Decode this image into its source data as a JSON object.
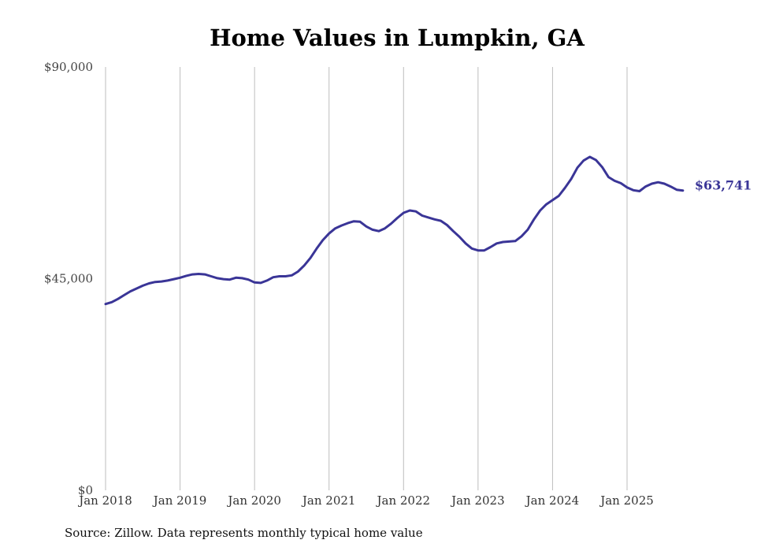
{
  "chart_data": {
    "type": "line",
    "title": "Home Values in Lumpkin, GA",
    "xlabel": "",
    "ylabel": "",
    "ylim": [
      0,
      90000
    ],
    "y_ticks": [
      0,
      45000,
      90000
    ],
    "y_tick_labels": [
      "$0",
      "$45,000",
      "$90,000"
    ],
    "x_tick_labels": [
      "Jan 2018",
      "Jan 2019",
      "Jan 2020",
      "Jan 2021",
      "Jan 2022",
      "Jan 2023",
      "Jan 2024",
      "Jan 2025"
    ],
    "x_tick_positions": [
      0,
      12,
      24,
      36,
      48,
      60,
      72,
      84
    ],
    "grid": "vertical",
    "line_color": "#3a3597",
    "end_label": "$63,741",
    "series": [
      {
        "name": "Typical home value",
        "start": "Jan 2018",
        "interval": "monthly",
        "values": [
          39600,
          40000,
          40700,
          41500,
          42300,
          42900,
          43500,
          44000,
          44300,
          44400,
          44600,
          44900,
          45200,
          45600,
          45900,
          46000,
          45900,
          45500,
          45100,
          44900,
          44800,
          45200,
          45100,
          44800,
          44200,
          44100,
          44600,
          45300,
          45500,
          45500,
          45700,
          46500,
          47800,
          49400,
          51400,
          53200,
          54600,
          55700,
          56300,
          56800,
          57200,
          57100,
          56100,
          55400,
          55100,
          55700,
          56700,
          57900,
          59000,
          59500,
          59300,
          58400,
          58000,
          57600,
          57300,
          56400,
          55100,
          53900,
          52500,
          51400,
          51000,
          51000,
          51700,
          52500,
          52800,
          52900,
          53000,
          54000,
          55400,
          57600,
          59500,
          60800,
          61700,
          62600,
          64300,
          66200,
          68600,
          70100,
          70900,
          70200,
          68700,
          66600,
          65800,
          65300,
          64400,
          63800,
          63600,
          64600,
          65200,
          65500,
          65200,
          64600,
          63900,
          63741
        ]
      }
    ]
  },
  "source": "Source: Zillow. Data represents monthly typical home value"
}
